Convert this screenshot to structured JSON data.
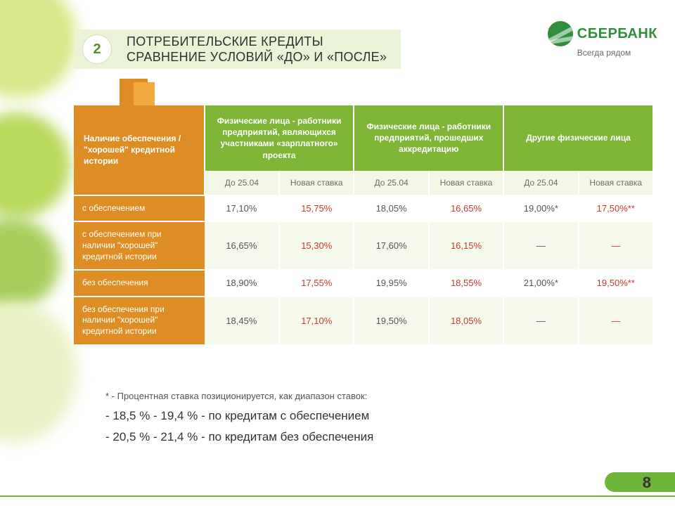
{
  "header": {
    "number": "2",
    "title_line1": "Потребительские кредиты",
    "title_line2": "Сравнение условий «до» и «после»"
  },
  "brand": {
    "name": "СБЕРБАНК",
    "tagline": "Всегда рядом"
  },
  "colors": {
    "brand_green": "#2f8f3d",
    "accent_green": "#7fb537",
    "orange": "#dd8d23",
    "orange_light": "#f2a93e",
    "header_box_bg": "#ebf3d6",
    "subhead_bg": "#f3f7e6",
    "new_rate_red": "#c63a2d"
  },
  "table": {
    "side_header": "Наличие обеспечения / \"хорошей\" кредитной истории",
    "groups": [
      "Физические лица - работники предприятий, являющихся участниками «зарплатного» проекта",
      "Физические лица - работники предприятий, прошедших аккредитацию",
      "Другие физические лица"
    ],
    "sub_before": "До 25.04",
    "sub_after": "Новая ставка",
    "rows": [
      {
        "label": "с обеспечением",
        "vals": [
          "17,10%",
          "15,75%",
          "18,05%",
          "16,65%",
          "19,00%*",
          "17,50%**"
        ]
      },
      {
        "label": "с обеспечением при наличии \"хорошей\" кредитной истории",
        "vals": [
          "16,65%",
          "15,30%",
          "17,60%",
          "16,15%",
          "—",
          "—"
        ]
      },
      {
        "label": "без обеспечения",
        "vals": [
          "18,90%",
          "17,55%",
          "19,95%",
          "18,55%",
          "21,00%*",
          "19,50%**"
        ]
      },
      {
        "label": "без обеспечения при наличии \"хорошей\" кредитной истории",
        "vals": [
          "18,45%",
          "17,10%",
          "19,50%",
          "18,05%",
          "—",
          "—"
        ]
      }
    ]
  },
  "footnote": {
    "star": "* - Процентная ставка позиционируется, как диапазон ставок:",
    "line1": "- 18,5 % - 19,4 % - по кредитам с обеспечением",
    "line2": "- 20,5 % - 21,4 % - по кредитам без обеспечения"
  },
  "page": "8"
}
